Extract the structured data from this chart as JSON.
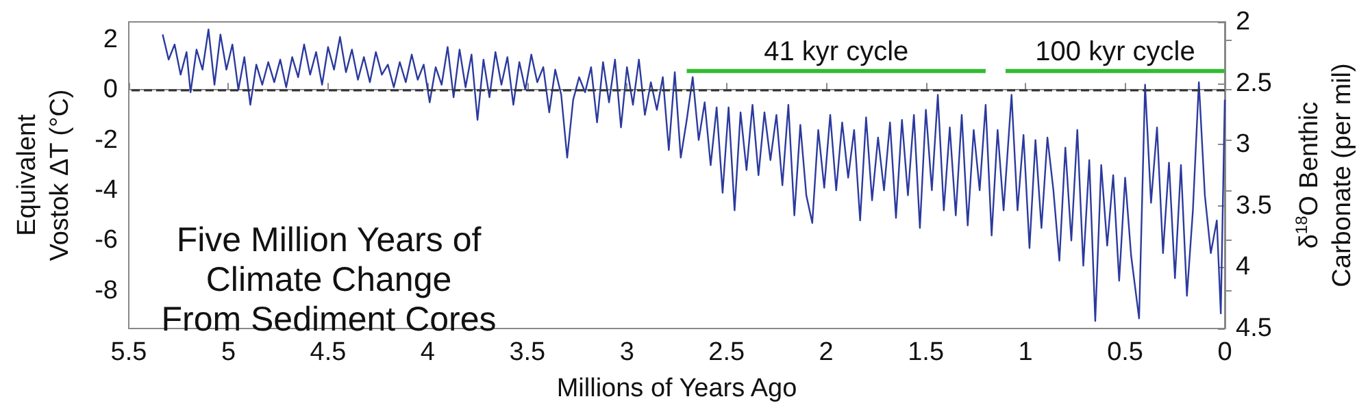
{
  "chart_data": {
    "type": "line",
    "title": "Five Million Years of\nClimate Change\nFrom Sediment Cores",
    "xlabel": "Millions of Years Ago",
    "ylabel": "Equivalent\nVostok ΔT (°C)",
    "y2label": "δ$^{18}$O Benthic\nCarbonate (per mil)",
    "xlim": [
      5.5,
      0
    ],
    "xticks": [
      5.5,
      5,
      4.5,
      4,
      3.5,
      3,
      2.5,
      2,
      1.5,
      1,
      0.5,
      0
    ],
    "ylim": [
      -9.5,
      2.7
    ],
    "yticks": [
      -8,
      -6,
      -4,
      -2,
      0,
      2
    ],
    "y2lim": [
      4.5,
      2
    ],
    "y2ticks": [
      2,
      2.5,
      3,
      3.5,
      4,
      4.5
    ],
    "marker": "none",
    "line_style": "solid",
    "grid": false,
    "legend": false,
    "ref_lines": [
      {
        "axis": "y",
        "value": 0,
        "color": "#333333",
        "line_style": "dashed"
      }
    ],
    "series": [
      {
        "color": "#2b3a9e",
        "x": [
          5.33,
          5.3,
          5.27,
          5.24,
          5.21,
          5.19,
          5.16,
          5.13,
          5.1,
          5.07,
          5.04,
          5.01,
          4.98,
          4.95,
          4.92,
          4.89,
          4.86,
          4.83,
          4.8,
          4.77,
          4.74,
          4.71,
          4.68,
          4.65,
          4.62,
          4.59,
          4.56,
          4.53,
          4.5,
          4.47,
          4.44,
          4.41,
          4.38,
          4.35,
          4.32,
          4.29,
          4.26,
          4.23,
          4.2,
          4.17,
          4.14,
          4.11,
          4.08,
          4.05,
          4.02,
          3.99,
          3.96,
          3.93,
          3.9,
          3.87,
          3.84,
          3.81,
          3.78,
          3.75,
          3.72,
          3.69,
          3.66,
          3.63,
          3.6,
          3.57,
          3.54,
          3.51,
          3.48,
          3.45,
          3.42,
          3.39,
          3.36,
          3.33,
          3.3,
          3.27,
          3.24,
          3.21,
          3.18,
          3.15,
          3.12,
          3.09,
          3.06,
          3.03,
          3.0,
          2.97,
          2.94,
          2.91,
          2.88,
          2.85,
          2.82,
          2.79,
          2.76,
          2.73,
          2.7,
          2.67,
          2.64,
          2.61,
          2.58,
          2.55,
          2.52,
          2.49,
          2.46,
          2.43,
          2.4,
          2.37,
          2.34,
          2.31,
          2.28,
          2.25,
          2.22,
          2.19,
          2.16,
          2.13,
          2.1,
          2.07,
          2.04,
          2.01,
          1.98,
          1.95,
          1.92,
          1.89,
          1.86,
          1.83,
          1.8,
          1.77,
          1.74,
          1.71,
          1.68,
          1.65,
          1.62,
          1.59,
          1.56,
          1.53,
          1.5,
          1.47,
          1.44,
          1.41,
          1.38,
          1.35,
          1.32,
          1.29,
          1.26,
          1.23,
          1.2,
          1.17,
          1.14,
          1.11,
          1.07,
          1.04,
          1.01,
          0.98,
          0.95,
          0.92,
          0.89,
          0.86,
          0.83,
          0.8,
          0.77,
          0.74,
          0.71,
          0.68,
          0.65,
          0.62,
          0.59,
          0.56,
          0.53,
          0.5,
          0.47,
          0.43,
          0.4,
          0.37,
          0.34,
          0.31,
          0.28,
          0.25,
          0.22,
          0.19,
          0.16,
          0.13,
          0.1,
          0.07,
          0.04,
          0.02,
          0.0
        ],
        "values": [
          2.2,
          1.2,
          1.8,
          0.6,
          1.5,
          -0.1,
          1.6,
          0.8,
          2.4,
          0.2,
          2.2,
          0.8,
          1.8,
          0.0,
          1.3,
          -0.6,
          1.0,
          0.2,
          1.1,
          0.3,
          1.2,
          0.1,
          1.3,
          0.5,
          1.8,
          0.6,
          1.5,
          0.2,
          1.7,
          0.8,
          2.1,
          0.7,
          1.6,
          0.4,
          1.3,
          0.3,
          1.5,
          0.6,
          1.0,
          0.1,
          1.1,
          0.3,
          1.4,
          0.4,
          1.0,
          -0.5,
          0.9,
          0.2,
          1.7,
          -0.3,
          1.6,
          0.1,
          1.4,
          -1.2,
          1.2,
          -0.3,
          1.5,
          0.2,
          1.3,
          -0.6,
          1.1,
          0.0,
          1.4,
          0.3,
          0.9,
          -0.9,
          0.8,
          -0.2,
          -2.7,
          -0.4,
          0.5,
          -0.1,
          0.9,
          -1.3,
          1.1,
          -0.5,
          1.2,
          -1.5,
          0.9,
          -0.6,
          1.2,
          -1.0,
          0.3,
          -0.8,
          0.5,
          -2.4,
          0.7,
          -2.7,
          -1.2,
          0.5,
          -2.0,
          -0.5,
          -3.0,
          -0.7,
          -4.1,
          -0.7,
          -4.8,
          -0.9,
          -3.2,
          -0.6,
          -3.4,
          -0.9,
          -2.8,
          -1.0,
          -3.8,
          -0.6,
          -5.0,
          -1.4,
          -4.2,
          -5.3,
          -1.6,
          -3.9,
          -1.0,
          -4.0,
          -1.3,
          -3.5,
          -1.6,
          -5.2,
          -1.1,
          -4.4,
          -1.9,
          -4.0,
          -1.3,
          -5.1,
          -1.2,
          -4.2,
          -1.0,
          -5.5,
          -0.8,
          -4.0,
          -0.2,
          -4.8,
          -1.5,
          -5.0,
          -1.0,
          -5.4,
          -1.6,
          -4.0,
          -0.6,
          -5.8,
          -1.6,
          -4.8,
          -0.2,
          -4.8,
          -1.8,
          -6.3,
          -2.0,
          -5.5,
          -1.9,
          -4.0,
          -6.8,
          -2.3,
          -6.0,
          -1.6,
          -7.0,
          -2.8,
          -9.2,
          -3.0,
          -6.2,
          -3.4,
          -7.6,
          -3.5,
          -6.6,
          -9.1,
          0.2,
          -4.5,
          -1.5,
          -6.5,
          -2.9,
          -7.5,
          -3.0,
          -8.2,
          -4.8,
          0.3,
          -4.2,
          -6.5,
          -5.2,
          -8.9,
          -0.4
        ]
      },
      {
        "name": "41 kyr cycle",
        "color": "#33bb33",
        "axis": "y2",
        "x": [
          2.7,
          1.2
        ],
        "values": [
          2.4,
          2.4
        ]
      },
      {
        "name": "100 kyr cycle",
        "color": "#33bb33",
        "axis": "y2",
        "x": [
          1.1,
          0
        ],
        "values": [
          2.4,
          2.4
        ]
      }
    ]
  }
}
